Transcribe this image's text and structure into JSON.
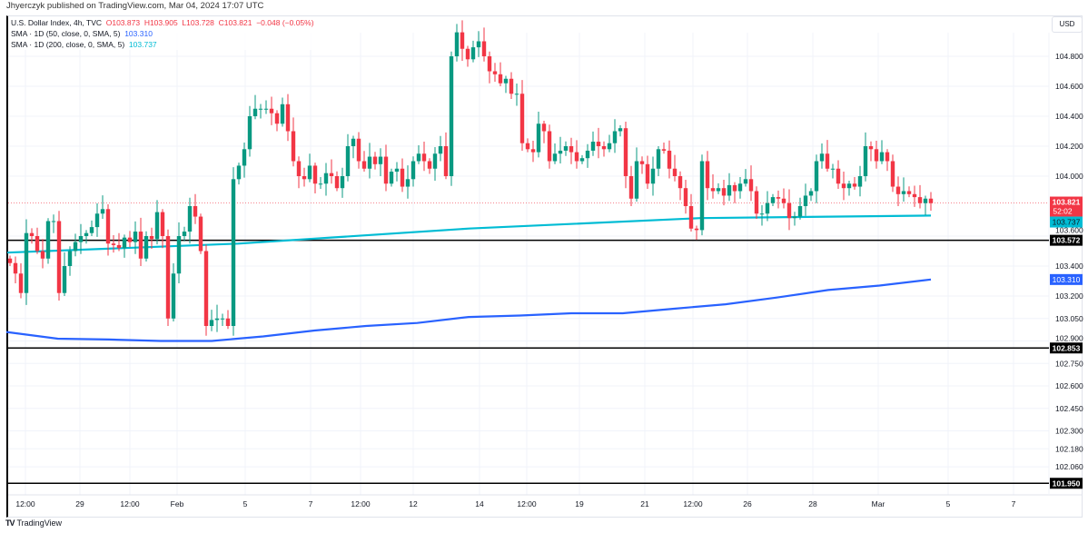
{
  "publisher_line": "Jhyerczyk published on TradingView.com, Mar 04, 2024 17:07 UTC",
  "legend": {
    "symbol": "U.S. Dollar Index, 4h, TVC",
    "open": "O103.873",
    "high": "H103.905",
    "low": "L103.728",
    "close": "C103.821",
    "change": "−0.048 (−0.05%)",
    "sma50_label": "SMA · 1D (50, close, 0, SMA, 5)",
    "sma50_value": "103.310",
    "sma200_label": "SMA · 1D (200, close, 0, SMA, 5)",
    "sma200_value": "103.737"
  },
  "currency_button": "USD",
  "footer_brand": "TradingView",
  "colors": {
    "up": "#089981",
    "down": "#f23645",
    "sma50": "#2962ff",
    "sma200": "#00bcd4",
    "hline": "#000000"
  },
  "chart_data": {
    "type": "candlestick",
    "title": "U.S. Dollar Index, 4h, TVC",
    "ylim": [
      101.85,
      104.98
    ],
    "y_ticks": [
      "104.800",
      "104.600",
      "104.400",
      "104.200",
      "104.000",
      "103.600",
      "103.400",
      "103.200",
      "103.050",
      "102.900",
      "102.750",
      "102.600",
      "102.450",
      "102.300",
      "102.180",
      "102.060"
    ],
    "x_ticks": [
      "12:00",
      "29",
      "12:00",
      "Feb",
      "5",
      "7",
      "12:00",
      "12",
      "14",
      "12:00",
      "19",
      "21",
      "12:00",
      "26",
      "28",
      "Mar",
      "5",
      "7"
    ],
    "first_open": 103.45,
    "closes": [
      103.42,
      103.35,
      103.22,
      103.62,
      103.6,
      103.5,
      103.45,
      103.7,
      103.7,
      103.22,
      103.4,
      103.5,
      103.56,
      103.6,
      103.62,
      103.66,
      103.75,
      103.78,
      103.55,
      103.54,
      103.52,
      103.59,
      103.56,
      103.63,
      103.45,
      103.6,
      103.58,
      103.76,
      103.6,
      103.05,
      103.35,
      103.6,
      103.63,
      103.8,
      103.73,
      103.5,
      103.0,
      103.04,
      103.05,
      103.05,
      103.0,
      103.98,
      104.07,
      104.18,
      104.4,
      104.45,
      104.45,
      104.45,
      104.42,
      104.35,
      104.48,
      104.3,
      104.1,
      104.0,
      103.98,
      104.07,
      103.95,
      103.95,
      104.02,
      104.0,
      103.92,
      104.0,
      104.2,
      104.25,
      104.1,
      104.05,
      104.13,
      104.08,
      104.13,
      103.95,
      104.03,
      104.05,
      103.93,
      103.98,
      104.1,
      104.15,
      104.1,
      104.05,
      104.15,
      104.2,
      104.0,
      104.8,
      104.96,
      104.85,
      104.78,
      104.86,
      104.9,
      104.8,
      104.7,
      104.68,
      104.62,
      104.65,
      104.55,
      104.55,
      104.22,
      104.18,
      104.16,
      104.35,
      104.3,
      104.1,
      104.15,
      104.17,
      104.2,
      104.16,
      104.1,
      104.12,
      104.17,
      104.23,
      104.2,
      104.18,
      104.22,
      104.3,
      104.32,
      104.0,
      103.85,
      104.1,
      104.08,
      103.95,
      104.05,
      104.18,
      104.17,
      104.05,
      104.0,
      103.92,
      103.8,
      103.65,
      103.64,
      104.1,
      103.92,
      103.9,
      103.92,
      103.87,
      103.94,
      103.9,
      103.95,
      103.98,
      103.9,
      103.75,
      103.75,
      103.82,
      103.86,
      103.85,
      103.82,
      103.72,
      103.73,
      103.8,
      103.87,
      103.9,
      104.1,
      104.15,
      104.05,
      104.05,
      103.95,
      103.92,
      103.95,
      103.93,
      104.0,
      104.2,
      104.18,
      104.1,
      104.16,
      104.1,
      103.93,
      103.88,
      103.9,
      103.88,
      103.86,
      103.82,
      103.85,
      103.82
    ],
    "sma50": [
      102.96,
      102.915,
      102.91,
      102.9,
      102.9,
      102.93,
      102.97,
      103.0,
      103.02,
      103.06,
      103.07,
      103.085,
      103.085,
      103.115,
      103.145,
      103.19,
      103.24,
      103.27,
      103.31
    ],
    "sma200": [
      103.49,
      103.55,
      103.65,
      103.72,
      103.737
    ],
    "horizontal_levels": [
      "103.572",
      "102.853",
      "101.950"
    ],
    "last_price": {
      "value": "103.821",
      "countdown": "52:02"
    },
    "sma200_tag": "103.737",
    "sma50_tag": "103.310",
    "legend_position": "top-left"
  }
}
